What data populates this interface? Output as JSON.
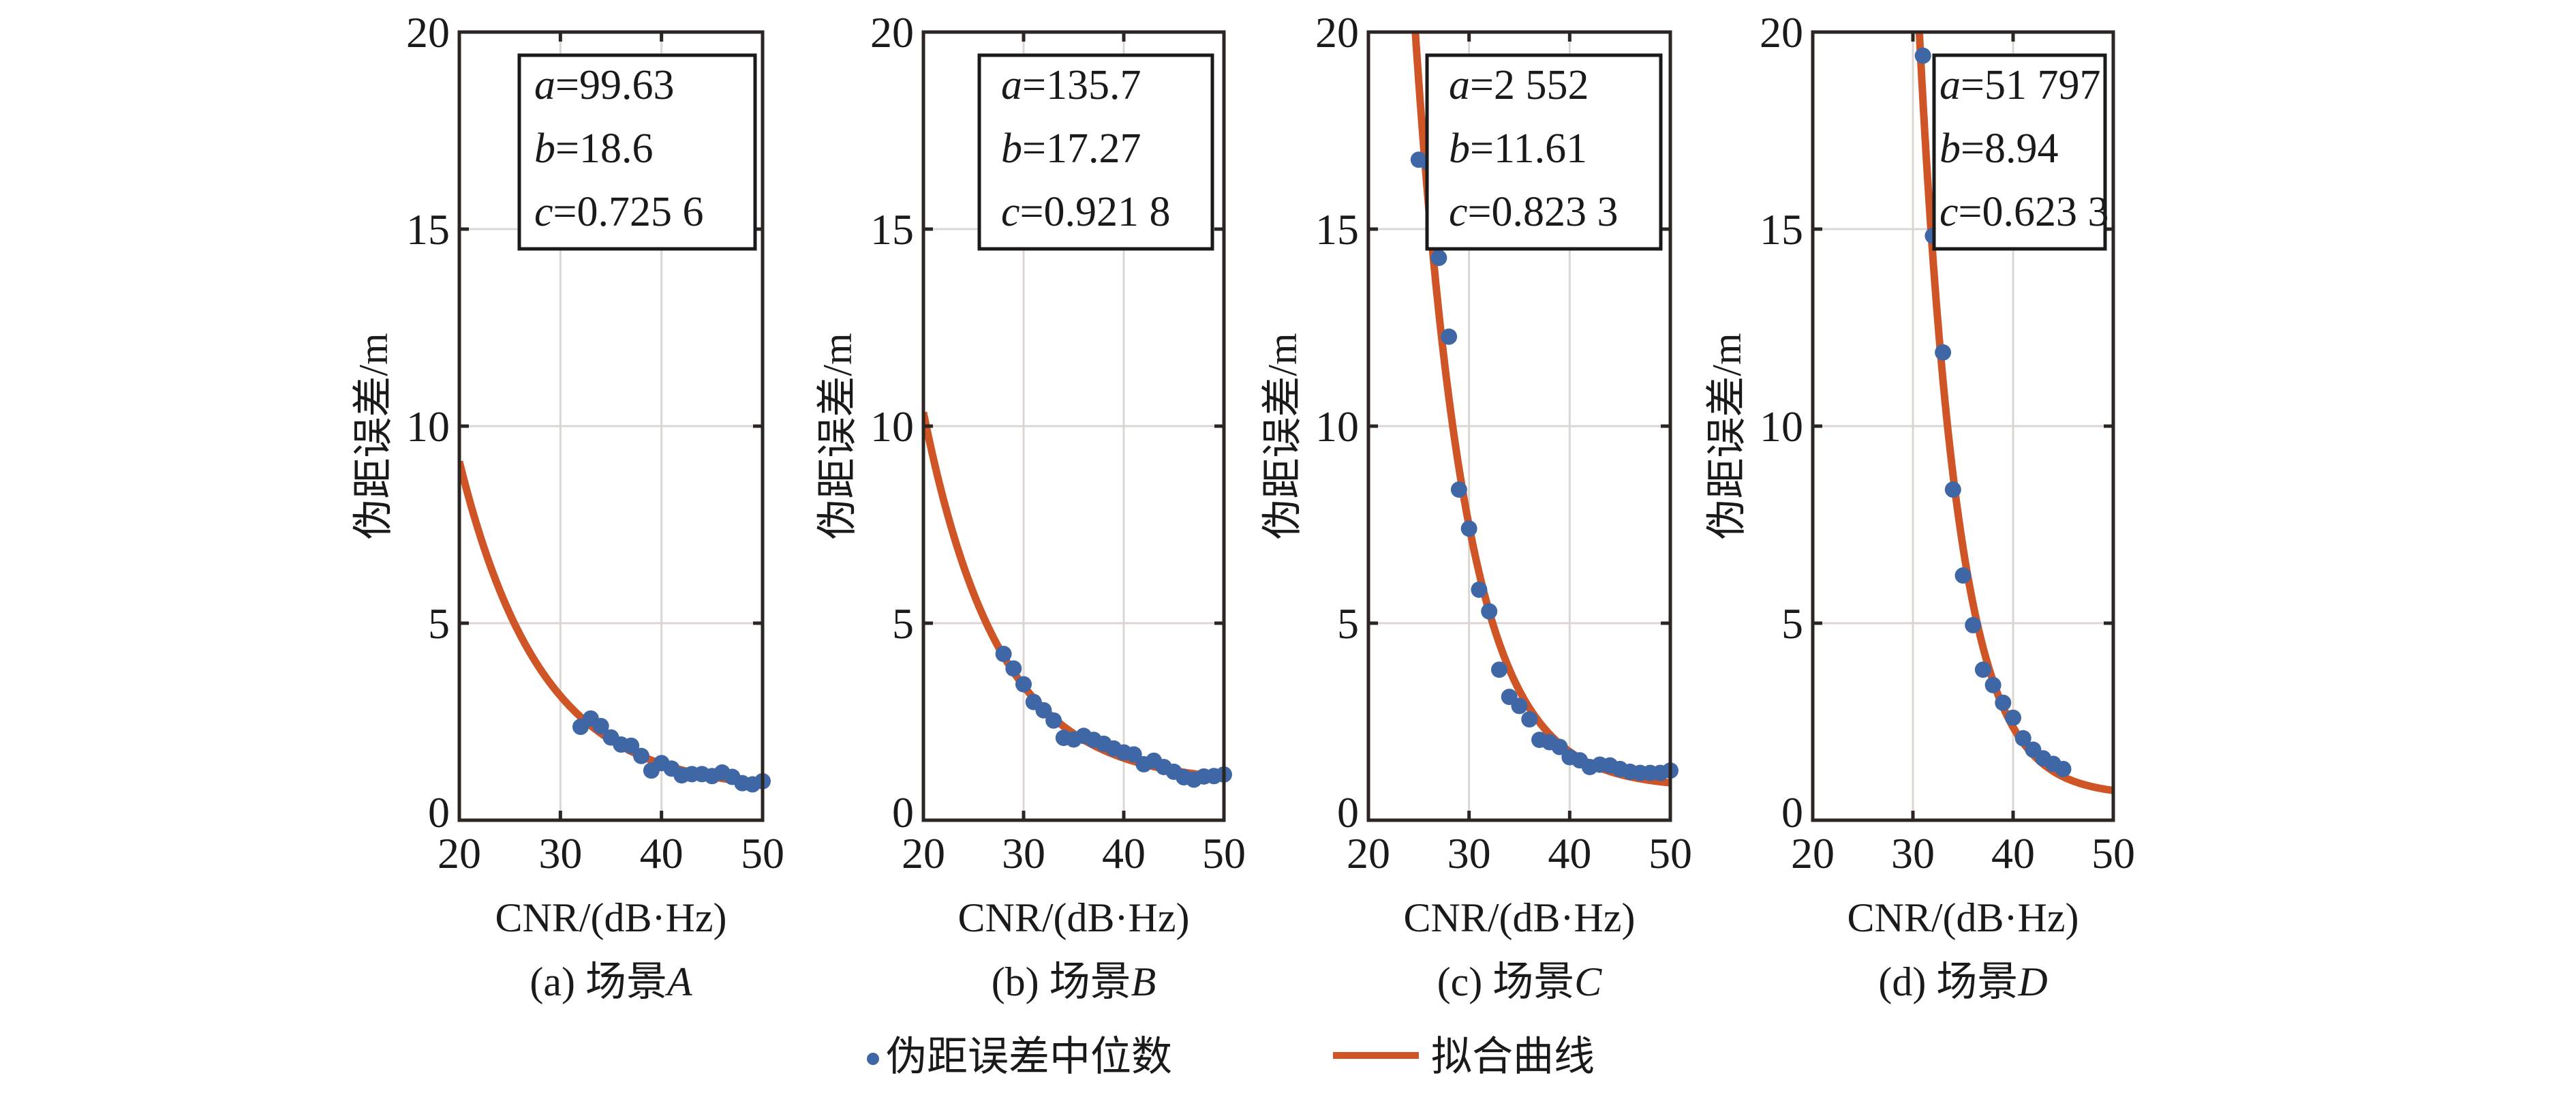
{
  "chart_data": [
    {
      "type": "scatter",
      "panel": "a",
      "caption_prefix": "(a) 场景",
      "caption_var": "A",
      "xlabel": "CNR/(dB·Hz)",
      "ylabel": "伪距误差/m",
      "xlim": [
        20,
        50
      ],
      "ylim": [
        0,
        20
      ],
      "xticks": [
        "20",
        "30",
        "40",
        "50"
      ],
      "yticks": [
        "0",
        "5",
        "10",
        "15",
        "20"
      ],
      "grid": true,
      "params": {
        "a_label": "a",
        "a_value": "=99.63",
        "b_label": "b",
        "b_value": "=18.6",
        "c_label": "c",
        "c_value": "=0.725 6"
      },
      "fit": {
        "model": "y = a*10^(-x/b) + c",
        "a": 99.63,
        "b": 18.6,
        "c": 0.7256
      },
      "series": [
        {
          "name": "伪距误差中位数",
          "x": [
            32,
            33,
            34,
            35,
            36,
            37,
            38,
            39,
            40,
            41,
            42,
            43,
            44,
            45,
            46,
            47,
            48,
            49,
            50
          ],
          "y": [
            2.37,
            2.58,
            2.39,
            2.1,
            1.92,
            1.89,
            1.63,
            1.26,
            1.45,
            1.31,
            1.14,
            1.17,
            1.17,
            1.12,
            1.21,
            1.1,
            0.94,
            0.91,
            0.99
          ]
        }
      ]
    },
    {
      "type": "scatter",
      "panel": "b",
      "caption_prefix": "(b) 场景",
      "caption_var": "B",
      "xlabel": "CNR/(dB·Hz)",
      "ylabel": "伪距误差/m",
      "xlim": [
        20,
        50
      ],
      "ylim": [
        0,
        20
      ],
      "xticks": [
        "20",
        "30",
        "40",
        "50"
      ],
      "yticks": [
        "0",
        "5",
        "10",
        "15",
        "20"
      ],
      "grid": true,
      "params": {
        "a_label": "a",
        "a_value": "=135.7",
        "b_label": "b",
        "b_value": "=17.27",
        "c_label": "c",
        "c_value": "=0.921 8"
      },
      "fit": {
        "model": "y = a*10^(-x/b) + c",
        "a": 135.7,
        "b": 17.27,
        "c": 0.9218
      },
      "series": [
        {
          "name": "伪距误差中位数",
          "x": [
            28,
            29,
            30,
            31,
            32,
            33,
            34,
            35,
            36,
            37,
            38,
            39,
            40,
            41,
            42,
            43,
            44,
            45,
            46,
            47,
            48,
            49,
            50
          ],
          "y": [
            4.22,
            3.85,
            3.45,
            3.0,
            2.79,
            2.53,
            2.09,
            2.05,
            2.14,
            2.04,
            1.94,
            1.82,
            1.72,
            1.67,
            1.42,
            1.51,
            1.35,
            1.23,
            1.09,
            1.03,
            1.11,
            1.12,
            1.16
          ]
        }
      ]
    },
    {
      "type": "scatter",
      "panel": "c",
      "caption_prefix": "(c) 场景",
      "caption_var": "C",
      "xlabel": "CNR/(dB·Hz)",
      "ylabel": "伪距误差/m",
      "xlim": [
        20,
        50
      ],
      "ylim": [
        0,
        20
      ],
      "xticks": [
        "20",
        "30",
        "40",
        "50"
      ],
      "yticks": [
        "0",
        "5",
        "10",
        "15",
        "20"
      ],
      "grid": true,
      "params": {
        "a_label": "a",
        "a_value": "=2 552",
        "b_label": "b",
        "b_value": "=11.61",
        "c_label": "c",
        "c_value": "=0.823 3"
      },
      "fit": {
        "model": "y = a*10^(-x/b) + c",
        "a": 2552,
        "b": 11.61,
        "c": 0.8233
      },
      "series": [
        {
          "name": "伪距误差中位数",
          "x": [
            25,
            26,
            27,
            28,
            29,
            30,
            31,
            32,
            33,
            34,
            35,
            36,
            37,
            38,
            39,
            40,
            41,
            42,
            43,
            44,
            45,
            46,
            47,
            48,
            49,
            50
          ],
          "y": [
            16.76,
            16.68,
            14.27,
            12.27,
            8.39,
            7.4,
            5.85,
            5.3,
            3.82,
            3.13,
            2.9,
            2.56,
            2.04,
            1.98,
            1.86,
            1.6,
            1.52,
            1.35,
            1.41,
            1.39,
            1.3,
            1.23,
            1.2,
            1.2,
            1.2,
            1.26
          ]
        }
      ]
    },
    {
      "type": "scatter",
      "panel": "d",
      "caption_prefix": "(d) 场景",
      "caption_var": "D",
      "xlabel": "CNR/(dB·Hz)",
      "ylabel": "伪距误差/m",
      "xlim": [
        20,
        50
      ],
      "ylim": [
        0,
        20
      ],
      "xticks": [
        "20",
        "30",
        "40",
        "50"
      ],
      "yticks": [
        "0",
        "5",
        "10",
        "15",
        "20"
      ],
      "grid": true,
      "params": {
        "a_label": "a",
        "a_value": "=51 797",
        "b_label": "b",
        "b_value": "=8.94",
        "c_label": "c",
        "c_value": "=0.623 3"
      },
      "fit": {
        "model": "y = a*10^(-x/b) + c",
        "a": 51797,
        "b": 8.94,
        "c": 0.6233
      },
      "series": [
        {
          "name": "伪距误差中位数",
          "x": [
            31,
            32,
            33,
            34,
            35,
            36,
            37,
            38,
            39,
            40,
            41,
            42,
            43,
            44,
            45
          ],
          "y": [
            19.4,
            14.83,
            11.87,
            8.39,
            6.21,
            4.95,
            3.82,
            3.43,
            2.98,
            2.6,
            2.08,
            1.79,
            1.57,
            1.43,
            1.3
          ]
        }
      ]
    }
  ],
  "legend": {
    "position": "bottom-center",
    "items": [
      {
        "label": "伪距误差中位数",
        "kind": "marker",
        "color": "#3f67a6"
      },
      {
        "label": "拟合曲线",
        "kind": "line",
        "color": "#cf5526"
      }
    ]
  },
  "colors": {
    "marker": "#3f67a6",
    "fit_line": "#cf5526",
    "axis": "#2b2623",
    "grid": "#dcd6d3"
  }
}
